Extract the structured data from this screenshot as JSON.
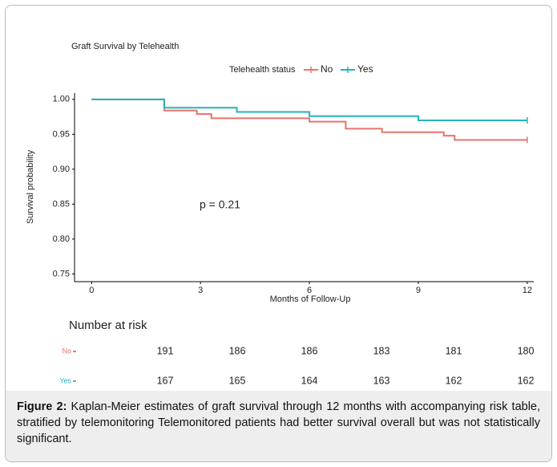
{
  "chart_data": {
    "type": "step",
    "title": "Graft Survival by Telehealth",
    "legend_title": "Telehealth status",
    "xlabel": "Months of Follow-Up",
    "ylabel": "Survival probability",
    "annotation": "p = 0.21",
    "xlim": [
      -0.47,
      12.18
    ],
    "ylim": [
      0.739,
      1.009
    ],
    "xticks": [
      0,
      3,
      6,
      9,
      12
    ],
    "yticks": [
      {
        "value": 1,
        "label": "1.00"
      },
      0.95,
      {
        "value": 0.9,
        "label": "0.90"
      },
      0.85,
      {
        "value": 0.8,
        "label": "0.80"
      },
      0.75
    ],
    "series": [
      {
        "name": "No",
        "color": "#e8736c",
        "x": [
          0,
          2,
          2.9,
          3.3,
          6,
          7,
          8,
          9.7,
          10,
          12
        ],
        "values": [
          1,
          0.984,
          0.979,
          0.973,
          0.968,
          0.958,
          0.953,
          0.948,
          0.942,
          0.942
        ]
      },
      {
        "name": "Yes",
        "color": "#26b3b8",
        "x": [
          0,
          2,
          4,
          6,
          9,
          12
        ],
        "values": [
          1,
          0.988,
          0.982,
          0.976,
          0.97,
          0.97
        ]
      }
    ],
    "risk_table": {
      "title": "Number at risk",
      "rows": [
        {
          "label": "No",
          "values": [
            191,
            186,
            186,
            183,
            181,
            180
          ]
        },
        {
          "label": "Yes",
          "values": [
            167,
            165,
            164,
            163,
            162,
            162
          ]
        }
      ]
    }
  },
  "caption": {
    "label": "Figure 2:",
    "text": "Kaplan-Meier estimates of graft survival through 12 months with accompanying risk table, stratified by telemonitoring Telemonitored patients had better survival overall but was not statistically significant."
  }
}
